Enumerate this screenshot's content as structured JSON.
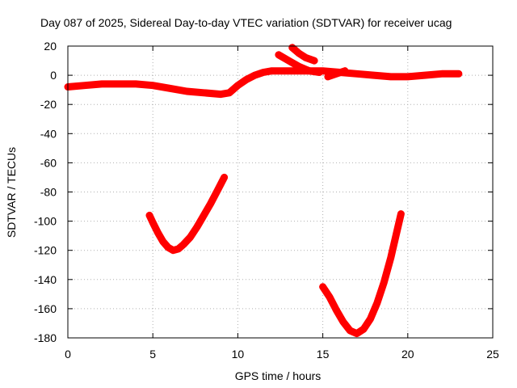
{
  "chart_data": {
    "type": "line",
    "title": "Day 087 of 2025, Sidereal Day-to-day VTEC variation (SDTVAR) for receiver ucag",
    "xlabel": "GPS time / hours",
    "ylabel": "SDTVAR / TECUs",
    "xlim": [
      0,
      25
    ],
    "ylim": [
      -180,
      20
    ],
    "xticks": [
      0,
      5,
      10,
      15,
      20,
      25
    ],
    "yticks": [
      20,
      0,
      -20,
      -40,
      -60,
      -80,
      -100,
      -120,
      -140,
      -160,
      -180
    ],
    "grid": true,
    "series_color": "#ff0000",
    "series": [
      {
        "name": "sdtvar-main-band",
        "x": [
          0,
          1,
          2,
          3,
          4,
          5,
          6,
          7,
          8,
          9,
          9.5,
          10,
          10.5,
          11,
          11.5,
          12,
          13,
          14,
          15,
          16,
          17,
          18,
          19,
          20,
          21,
          22,
          23
        ],
        "y": [
          -8,
          -7,
          -6,
          -6,
          -6,
          -7,
          -9,
          -11,
          -12,
          -13,
          -12,
          -7,
          -3,
          0,
          2,
          3,
          3,
          3,
          3,
          2,
          1,
          0,
          -1,
          -1,
          0,
          1,
          1
        ]
      },
      {
        "name": "sdtvar-spur-upper",
        "x": [
          13.2,
          13.6,
          14.0,
          14.5
        ],
        "y": [
          19,
          15,
          12,
          10
        ]
      },
      {
        "name": "sdtvar-spur-lower",
        "x": [
          12.4,
          13.0,
          13.6,
          14.2,
          14.8
        ],
        "y": [
          14,
          10,
          6,
          3,
          2
        ]
      },
      {
        "name": "sdtvar-spur-right",
        "x": [
          15.3,
          15.8,
          16.3
        ],
        "y": [
          -1,
          1,
          3
        ]
      },
      {
        "name": "sdtvar-arc-1",
        "x": [
          4.8,
          5.0,
          5.3,
          5.6,
          5.9,
          6.2,
          6.5,
          6.8,
          7.2,
          7.6,
          8.0,
          8.4,
          8.8,
          9.2
        ],
        "y": [
          -96,
          -101,
          -108,
          -114,
          -118,
          -120,
          -119,
          -116,
          -111,
          -104,
          -96,
          -88,
          -79,
          -70
        ]
      },
      {
        "name": "sdtvar-arc-2",
        "x": [
          15.0,
          15.4,
          15.8,
          16.2,
          16.6,
          17.0,
          17.4,
          17.8,
          18.2,
          18.6,
          19.0,
          19.3,
          19.6
        ],
        "y": [
          -145,
          -152,
          -161,
          -169,
          -175,
          -177,
          -174,
          -167,
          -156,
          -142,
          -125,
          -110,
          -95
        ]
      }
    ]
  }
}
